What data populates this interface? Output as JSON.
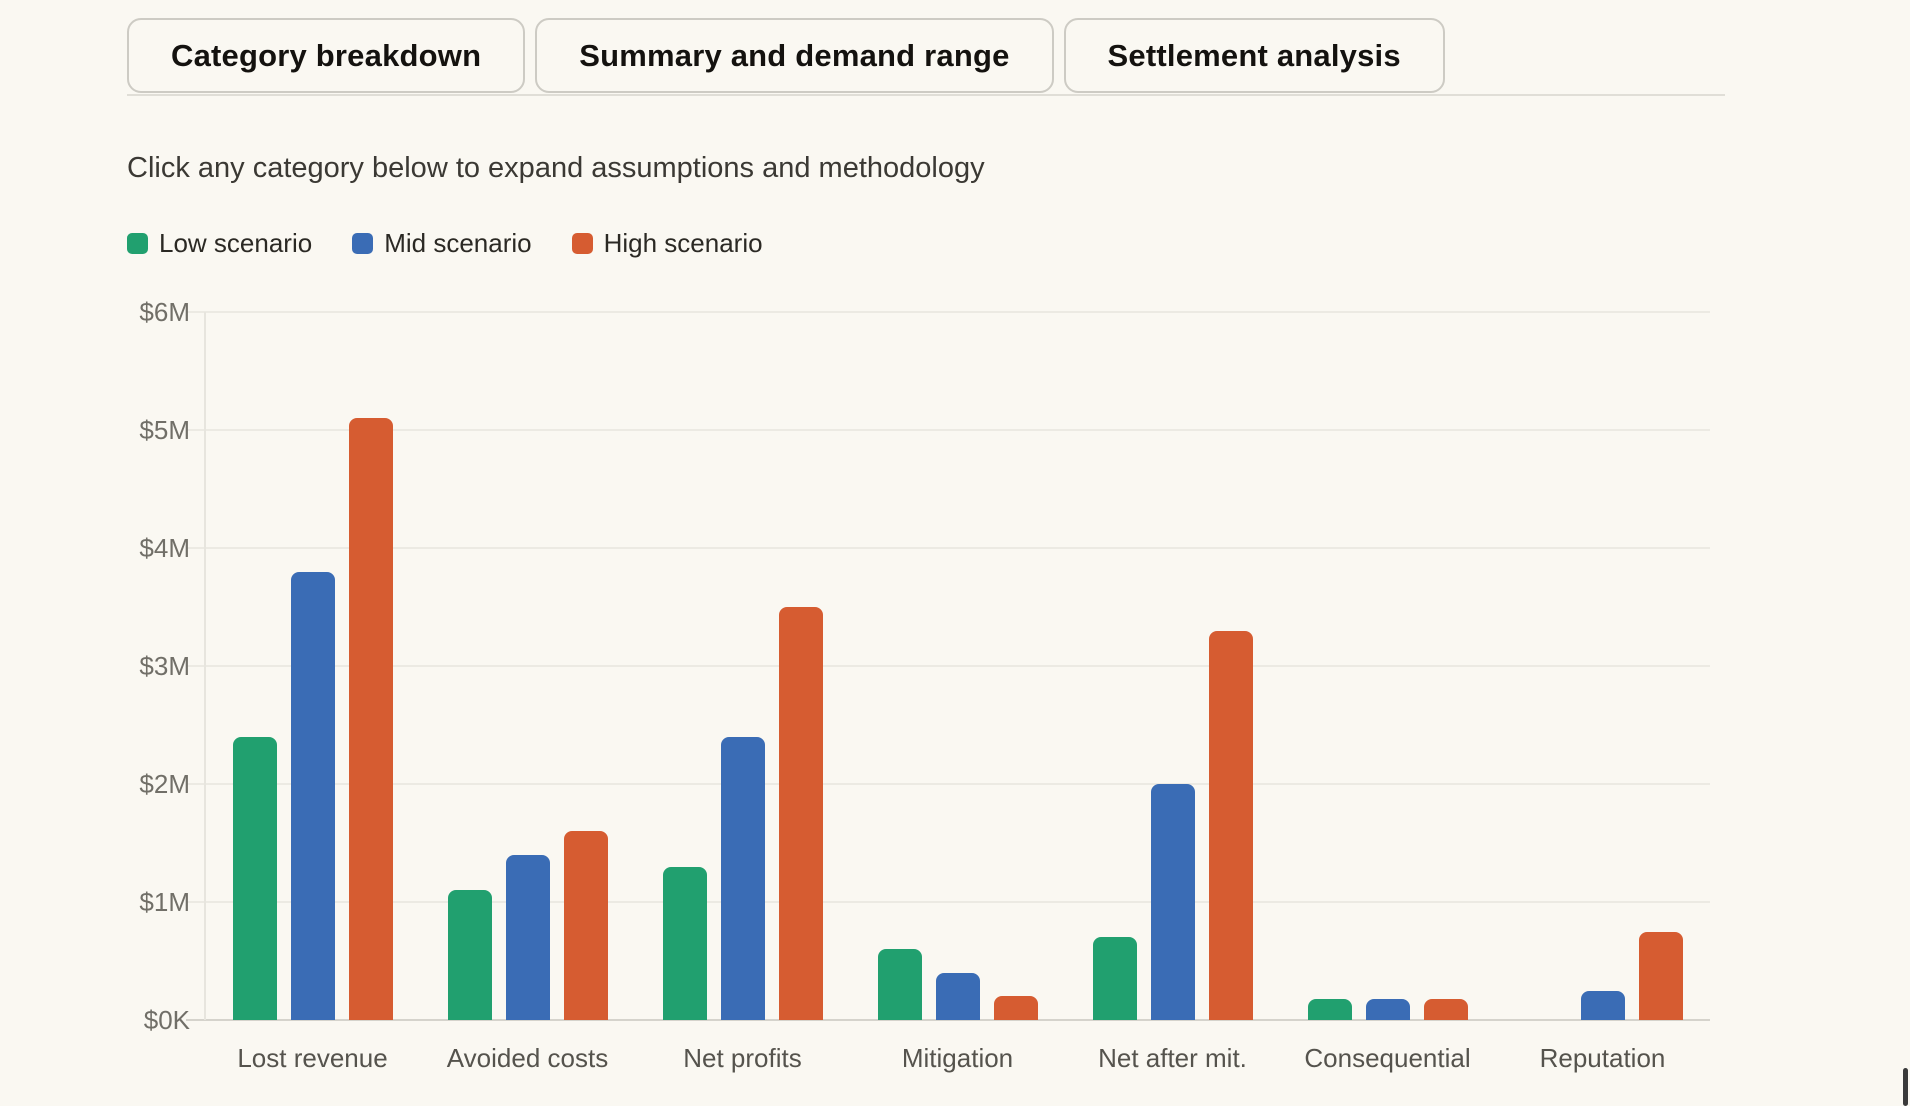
{
  "tabs": [
    "Category breakdown",
    "Summary and demand range",
    "Settlement analysis"
  ],
  "subtitle": "Click any category below to expand assumptions and methodology",
  "legend": [
    {
      "label": "Low scenario",
      "color": "#21A06F"
    },
    {
      "label": "Mid scenario",
      "color": "#3A6CB5"
    },
    {
      "label": "High scenario",
      "color": "#D65C31"
    }
  ],
  "colors": {
    "background": "#FAF8F2",
    "gridline": "#ECEAE3",
    "baseline": "#D5D3CC",
    "tab_border": "#CDCBC4",
    "tick_text": "#716F68",
    "category_text": "#55534D"
  },
  "chart_data": {
    "type": "bar",
    "title": "",
    "categories": [
      "Lost revenue",
      "Avoided costs",
      "Net profits",
      "Mitigation",
      "Net after mit.",
      "Consequential",
      "Reputation"
    ],
    "series": [
      {
        "name": "Low scenario",
        "color": "#21A06F",
        "values": [
          2.4,
          1.1,
          1.3,
          0.6,
          0.7,
          0.175,
          0
        ]
      },
      {
        "name": "Mid scenario",
        "color": "#3A6CB5",
        "values": [
          3.8,
          1.4,
          2.4,
          0.4,
          2.0,
          0.175,
          0.25
        ]
      },
      {
        "name": "High scenario",
        "color": "#D65C31",
        "values": [
          5.1,
          1.6,
          3.5,
          0.2,
          3.3,
          0.175,
          0.75
        ]
      }
    ],
    "values_unit": "USD millions",
    "xlabel": "",
    "ylabel": "",
    "ylim": [
      0,
      6
    ],
    "yticks": [
      0,
      1,
      2,
      3,
      4,
      5,
      6
    ],
    "ytick_labels": [
      "$0K",
      "$1M",
      "$2M",
      "$3M",
      "$4M",
      "$5M",
      "$6M"
    ],
    "grid": true,
    "legend_position": "top-left"
  }
}
